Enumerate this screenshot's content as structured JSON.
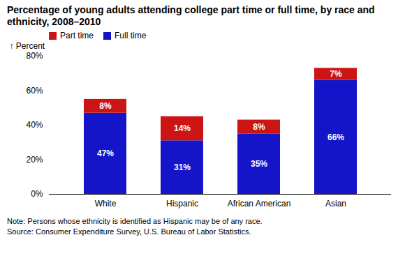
{
  "chart_data": {
    "type": "bar",
    "title": "Percentage of young adults attending college part time or full time, by race and ethnicity, 2008–2010",
    "categories": [
      "White",
      "Hispanic",
      "African American",
      "Asian"
    ],
    "series": [
      {
        "name": "Full time",
        "color": "#1414c8",
        "values": [
          47,
          31,
          35,
          66
        ],
        "value_labels": [
          "47%",
          "31%",
          "35%",
          "66%"
        ]
      },
      {
        "name": "Part time",
        "color": "#cc1414",
        "values": [
          8,
          14,
          8,
          7
        ],
        "value_labels": [
          "8%",
          "14%",
          "8%",
          "7%"
        ]
      }
    ],
    "stacked": true,
    "data_labels": true,
    "ylabel": "Percent",
    "ylim": [
      0,
      80
    ],
    "yticks": [
      {
        "value": 0,
        "label": "0%"
      },
      {
        "value": 20,
        "label": "20%"
      },
      {
        "value": 40,
        "label": "40%"
      },
      {
        "value": 60,
        "label": "60%"
      },
      {
        "value": 80,
        "label": "80%"
      }
    ],
    "grid": false,
    "legend": "upper left",
    "annotations": [
      "Note: Persons whose ethnicity is identified as Hispanic may be of any race.",
      "Source: Consumer Expenditure Survey, U.S. Bureau of Labor Statistics."
    ]
  }
}
